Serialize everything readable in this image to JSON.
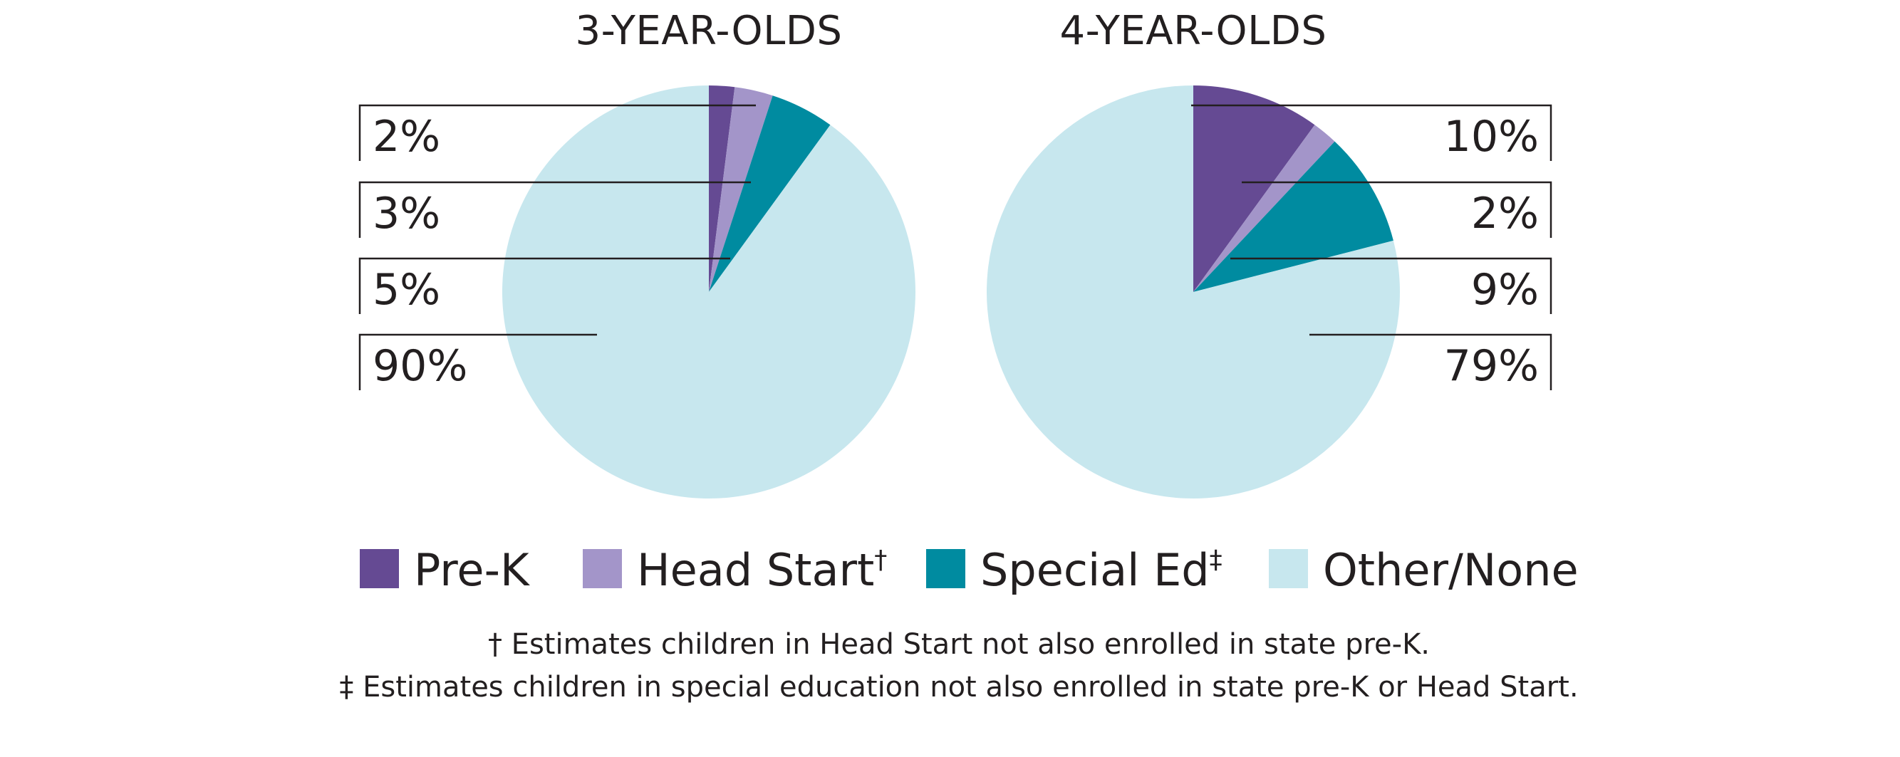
{
  "colors": {
    "pre_k": "#654a93",
    "head_start": "#a395c9",
    "special_ed": "#008ba0",
    "other_none": "#c7e7ee",
    "text": "#231f20"
  },
  "legend": [
    {
      "label": "Pre-K",
      "mark": "",
      "color": "#654a93"
    },
    {
      "label": "Head Start",
      "mark": "†",
      "color": "#a395c9"
    },
    {
      "label": "Special Ed",
      "mark": "‡",
      "color": "#008ba0"
    },
    {
      "label": "Other/None",
      "mark": "",
      "color": "#c7e7ee"
    }
  ],
  "footnotes": [
    "† Estimates children in Head Start not also enrolled in state pre-K.",
    "‡ Estimates children in special education not also enrolled in state pre-K or Head Start."
  ],
  "chart_data": [
    {
      "type": "pie",
      "title": "3-YEAR-OLDS",
      "categories": [
        "Pre-K",
        "Head Start",
        "Special Ed",
        "Other/None"
      ],
      "values": [
        2,
        3,
        5,
        90
      ],
      "labels": [
        "2%",
        "3%",
        "5%",
        "90%"
      ],
      "label_side": "left"
    },
    {
      "type": "pie",
      "title": "4-YEAR-OLDS",
      "categories": [
        "Pre-K",
        "Head Start",
        "Special Ed",
        "Other/None"
      ],
      "values": [
        10,
        2,
        9,
        79
      ],
      "labels": [
        "10%",
        "2%",
        "9%",
        "79%"
      ],
      "label_side": "right"
    }
  ]
}
